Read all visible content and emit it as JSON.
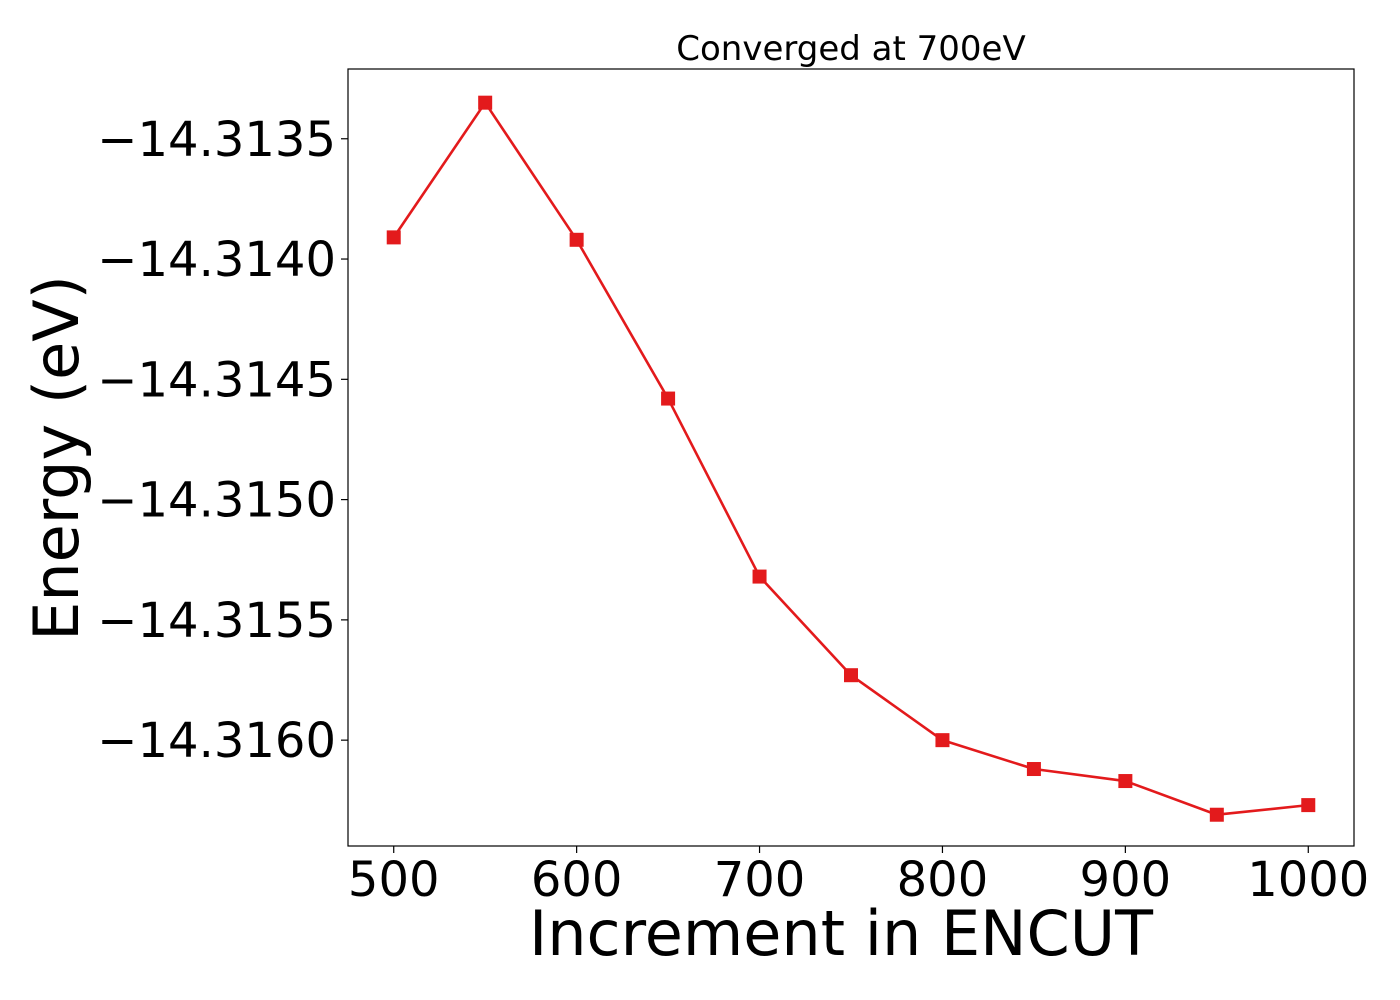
{
  "chart_data": {
    "type": "line",
    "title": "Converged at 700eV",
    "xlabel": "Increment in ENCUT",
    "ylabel": "Energy (eV)",
    "x": [
      500,
      550,
      600,
      650,
      700,
      750,
      800,
      850,
      900,
      950,
      1000
    ],
    "series": [
      {
        "values": [
          -14.31391,
          -14.31335,
          -14.31392,
          -14.31458,
          -14.31532,
          -14.31573,
          -14.316,
          -14.31612,
          -14.31617,
          -14.31631,
          -14.31627
        ],
        "color": "#e31a1c",
        "marker": "square"
      }
    ],
    "xlim": [
      475,
      1025
    ],
    "ylim": [
      -14.31644,
      -14.31321
    ],
    "xticks": [
      500,
      600,
      700,
      800,
      900,
      1000
    ],
    "xtick_labels": [
      "500",
      "600",
      "700",
      "800",
      "900",
      "1000"
    ],
    "yticks": [
      -14.3135,
      -14.314,
      -14.3145,
      -14.315,
      -14.3155,
      -14.316
    ],
    "ytick_labels": [
      "−14.3135",
      "−14.3140",
      "−14.3145",
      "−14.3150",
      "−14.3155",
      "−14.3160"
    ],
    "grid": false,
    "legend": false
  }
}
